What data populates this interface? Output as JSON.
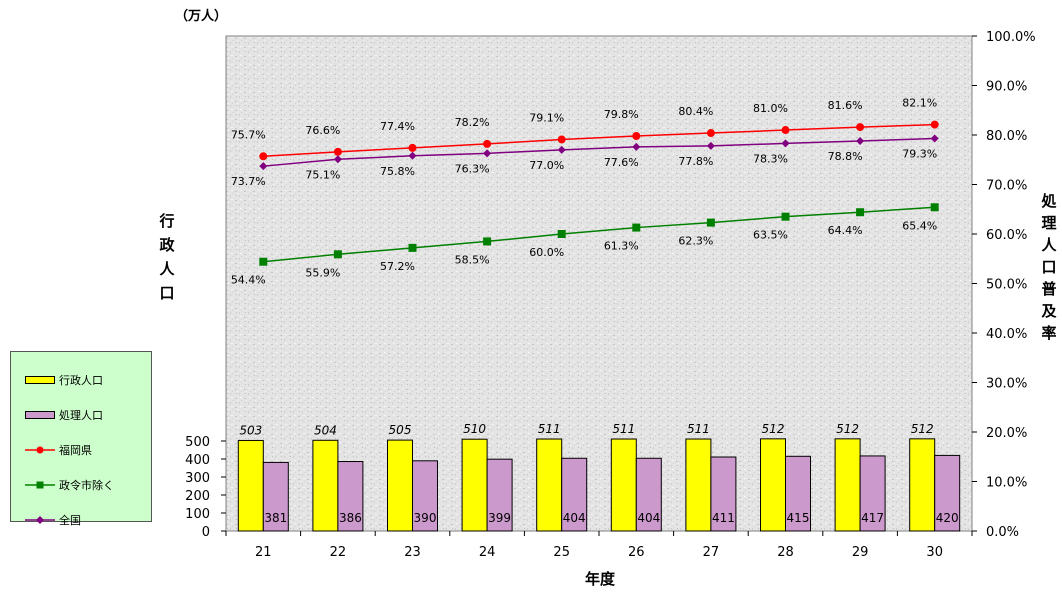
{
  "chart_data": {
    "type": "bar",
    "categories": [
      "21",
      "22",
      "23",
      "24",
      "25",
      "26",
      "27",
      "28",
      "29",
      "30"
    ],
    "xlabel": "年度",
    "ylabel_left": "行政人口",
    "ylabel_left_unit": "（万人）",
    "ylabel_right": "処理人口普及率",
    "ylim_left": [
      0,
      550
    ],
    "yticks_left": [
      "0",
      "100",
      "200",
      "300",
      "400",
      "500"
    ],
    "ylim_right": [
      0,
      100
    ],
    "yticks_right": [
      "0.0%",
      "10.0%",
      "20.0%",
      "30.0%",
      "40.0%",
      "50.0%",
      "60.0%",
      "70.0%",
      "80.0%",
      "90.0%",
      "100.0%"
    ],
    "grid": false,
    "legend_position": "left",
    "bar_series": [
      {
        "name": "行政人口",
        "color": "#ffff00",
        "values": [
          503,
          504,
          505,
          510,
          511,
          511,
          511,
          512,
          512,
          512
        ],
        "labels": [
          "503",
          "504",
          "505",
          "510",
          "511",
          "511",
          "511",
          "512",
          "512",
          "512"
        ]
      },
      {
        "name": "処理人口",
        "color": "#cc99cc",
        "values": [
          381,
          386,
          390,
          399,
          404,
          404,
          411,
          415,
          417,
          420
        ],
        "labels": [
          "381",
          "386",
          "390",
          "399",
          "404",
          "404",
          "411",
          "415",
          "417",
          "420"
        ]
      }
    ],
    "line_series": [
      {
        "name": "福岡県",
        "color": "#ff0000",
        "marker": "circle",
        "values": [
          75.7,
          76.6,
          77.4,
          78.2,
          79.1,
          79.8,
          80.4,
          81.0,
          81.6,
          82.1
        ],
        "labels": [
          "75.7%",
          "76.6%",
          "77.4%",
          "78.2%",
          "79.1%",
          "79.8%",
          "80.4%",
          "81.0%",
          "81.6%",
          "82.1%"
        ]
      },
      {
        "name": "政令市除く",
        "color": "#008000",
        "marker": "square",
        "values": [
          54.4,
          55.9,
          57.2,
          58.5,
          60.0,
          61.3,
          62.3,
          63.5,
          64.4,
          65.4
        ],
        "labels": [
          "54.4%",
          "55.9%",
          "57.2%",
          "58.5%",
          "60.0%",
          "61.3%",
          "62.3%",
          "63.5%",
          "64.4%",
          "65.4%"
        ]
      },
      {
        "name": "全国",
        "color": "#800080",
        "marker": "diamond",
        "values": [
          73.7,
          75.1,
          75.8,
          76.3,
          77.0,
          77.6,
          77.8,
          78.3,
          78.8,
          79.3
        ],
        "labels": [
          "73.7%",
          "75.1%",
          "75.8%",
          "76.3%",
          "77.0%",
          "77.6%",
          "77.8%",
          "78.3%",
          "78.8%",
          "79.3%"
        ]
      }
    ]
  },
  "legend": {
    "items": [
      {
        "label": "行政人口",
        "kind": "box",
        "color": "#ffff00"
      },
      {
        "label": "処理人口",
        "kind": "box",
        "color": "#cc99cc"
      },
      {
        "label": "福岡県",
        "kind": "line",
        "color": "#ff0000",
        "marker": "circle"
      },
      {
        "label": "政令市除く",
        "kind": "line",
        "color": "#008000",
        "marker": "square"
      },
      {
        "label": "全国",
        "kind": "line",
        "color": "#800080",
        "marker": "diamond"
      }
    ]
  }
}
